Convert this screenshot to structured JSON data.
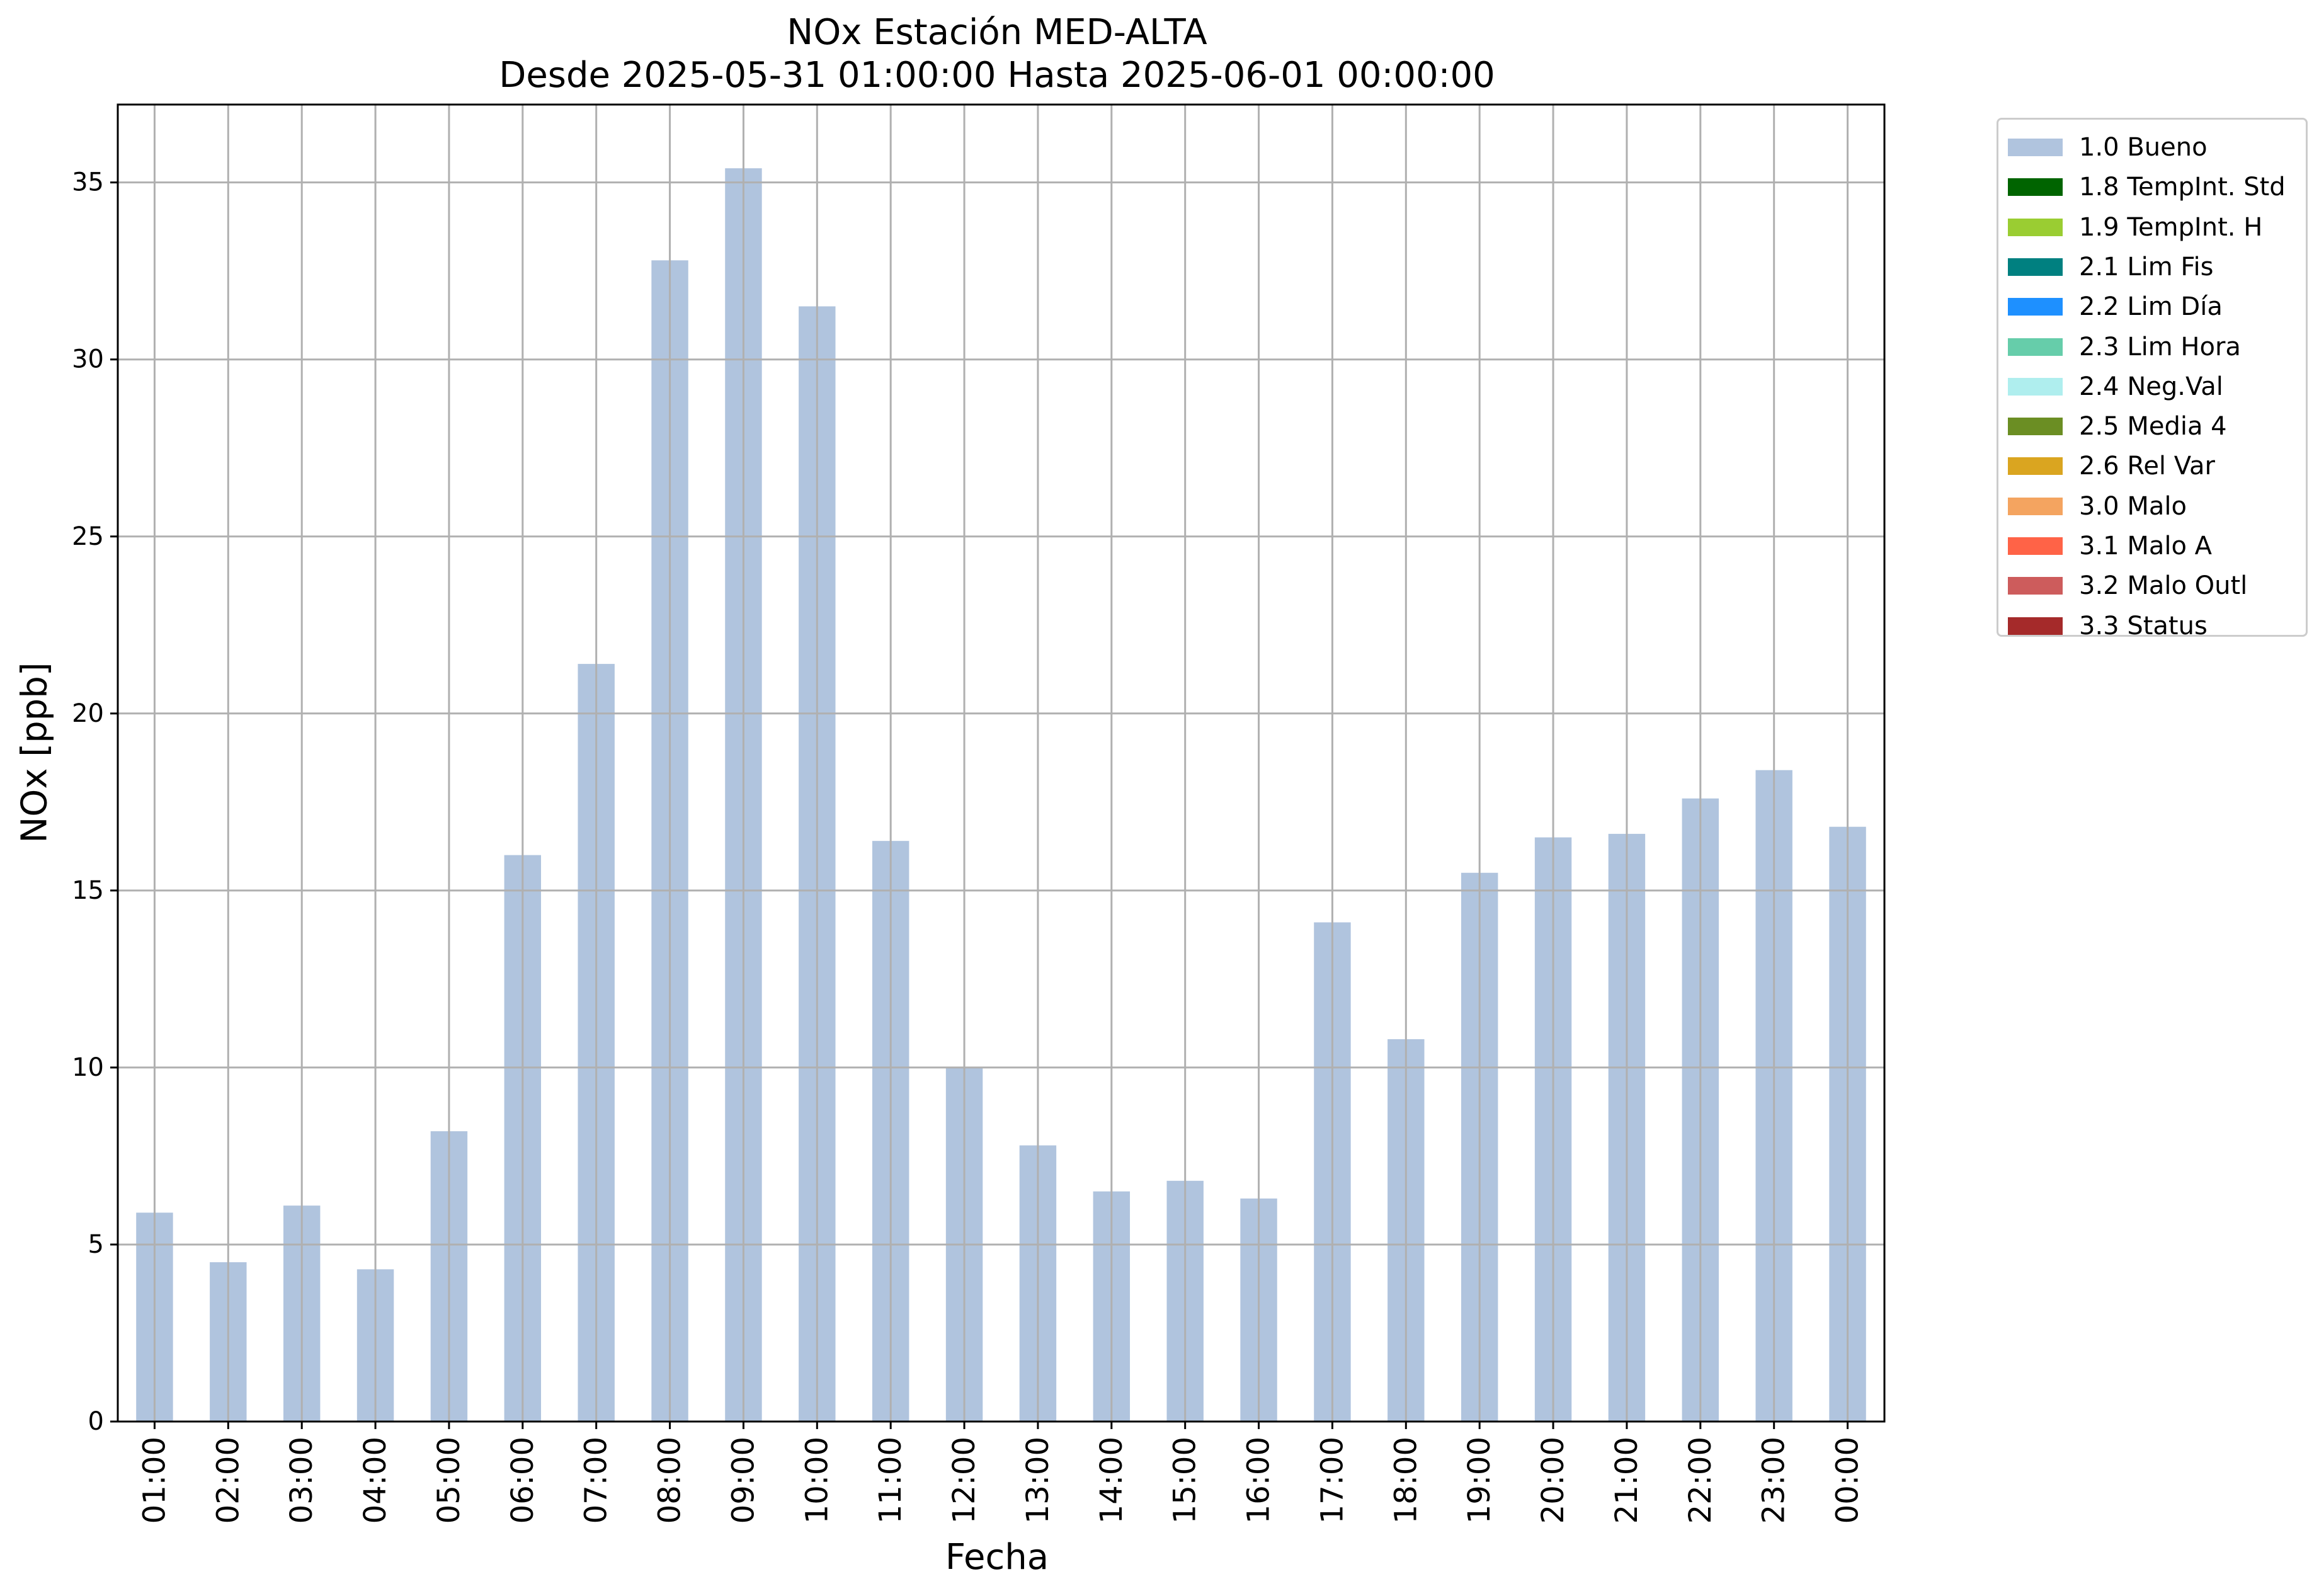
{
  "chart_data": {
    "type": "bar",
    "title": "NOx Estación MED-ALTA",
    "subtitle": "Desde 2025-05-31 01:00:00 Hasta 2025-06-01 00:00:00",
    "xlabel": "Fecha",
    "ylabel": "NOx [ppb]",
    "ylim": [
      0,
      37.2
    ],
    "yticks": [
      0,
      5,
      10,
      15,
      20,
      25,
      30,
      35
    ],
    "grid": true,
    "legend_position": "outside-top-right",
    "categories": [
      "01:00",
      "02:00",
      "03:00",
      "04:00",
      "05:00",
      "06:00",
      "07:00",
      "08:00",
      "09:00",
      "10:00",
      "11:00",
      "12:00",
      "13:00",
      "14:00",
      "15:00",
      "16:00",
      "17:00",
      "18:00",
      "19:00",
      "20:00",
      "21:00",
      "22:00",
      "23:00",
      "00:00"
    ],
    "series": [
      {
        "name": "1.0 Bueno",
        "color": "#b0c4de",
        "values": [
          5.9,
          4.5,
          6.1,
          4.3,
          8.2,
          16.0,
          21.4,
          32.8,
          35.4,
          31.5,
          16.4,
          10.0,
          7.8,
          6.5,
          6.8,
          6.3,
          14.1,
          10.8,
          15.5,
          16.5,
          16.6,
          17.6,
          18.4,
          16.8
        ]
      }
    ],
    "legend": [
      {
        "label": "1.0 Bueno",
        "color": "#b0c4de"
      },
      {
        "label": "1.8 TempInt. Std",
        "color": "#006400"
      },
      {
        "label": "1.9 TempInt. H",
        "color": "#9acd32"
      },
      {
        "label": "2.1 Lim Fis",
        "color": "#008080"
      },
      {
        "label": "2.2 Lim Día",
        "color": "#1e90ff"
      },
      {
        "label": "2.3 Lim Hora",
        "color": "#66cdaa"
      },
      {
        "label": "2.4 Neg.Val",
        "color": "#afeeee"
      },
      {
        "label": "2.5 Media 4",
        "color": "#6b8e23"
      },
      {
        "label": "2.6 Rel Var",
        "color": "#daa520"
      },
      {
        "label": "3.0 Malo",
        "color": "#f4a460"
      },
      {
        "label": "3.1 Malo A",
        "color": "#ff6347"
      },
      {
        "label": "3.2 Malo Outl",
        "color": "#cd5c5c"
      },
      {
        "label": "3.3 Status",
        "color": "#a52a2a"
      }
    ]
  }
}
